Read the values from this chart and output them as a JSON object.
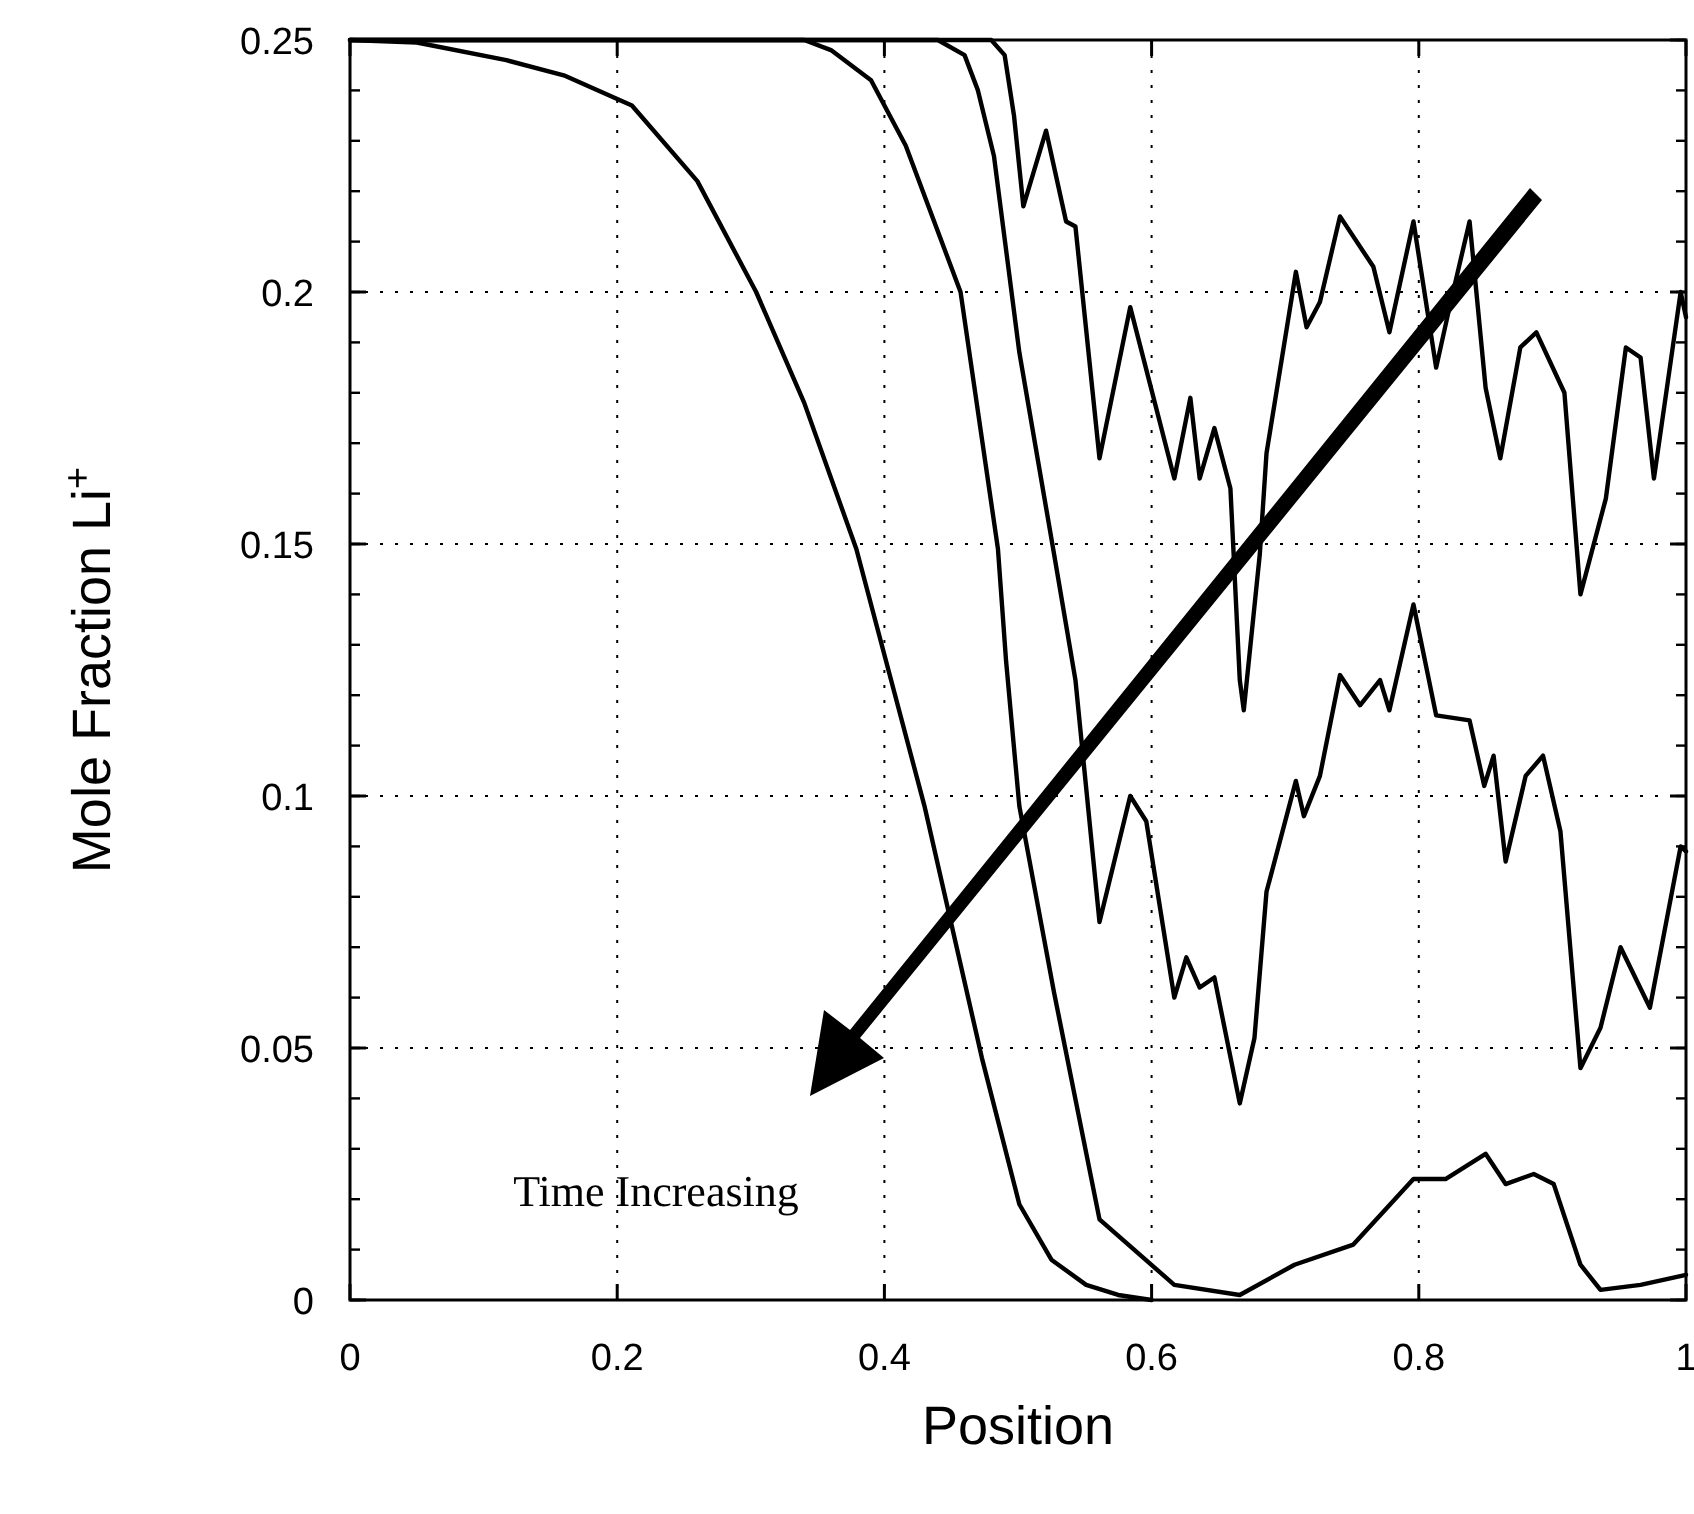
{
  "chart_data": {
    "type": "line",
    "xlabel": "Position",
    "ylabel": "Mole Fraction Li$^{+}$",
    "xlim": [
      0,
      1
    ],
    "ylim": [
      0,
      0.25
    ],
    "xticks": [
      0,
      0.2,
      0.4,
      0.6,
      0.8,
      1
    ],
    "yticks": [
      0,
      0.05,
      0.1,
      0.15,
      0.2,
      0.25
    ],
    "grid": true,
    "marker": "none",
    "line_style": "solid",
    "annotations": [
      "Time Increasing"
    ],
    "series": [
      {
        "color": "#000000",
        "x": [
          0,
          0.05,
          0.117,
          0.16,
          0.211,
          0.26,
          0.304,
          0.34,
          0.379,
          0.43,
          0.473,
          0.501,
          0.525,
          0.551,
          0.575,
          0.6
        ],
        "values": [
          0.25,
          0.2495,
          0.246,
          0.243,
          0.237,
          0.222,
          0.2,
          0.178,
          0.149,
          0.098,
          0.048,
          0.019,
          0.008,
          0.003,
          0.001,
          0
        ]
      },
      {
        "color": "#000000",
        "x": [
          0,
          0.34,
          0.36,
          0.39,
          0.416,
          0.457,
          0.485,
          0.491,
          0.501,
          0.527,
          0.561,
          0.617,
          0.666,
          0.707,
          0.751,
          0.796,
          0.82,
          0.85,
          0.865,
          0.886,
          0.901,
          0.921,
          0.936,
          0.966,
          1
        ],
        "values": [
          0.25,
          0.25,
          0.248,
          0.242,
          0.229,
          0.2,
          0.149,
          0.127,
          0.098,
          0.061,
          0.016,
          0.003,
          0.001,
          0.007,
          0.011,
          0.024,
          0.024,
          0.029,
          0.023,
          0.025,
          0.023,
          0.007,
          0.002,
          0.003,
          0.005
        ]
      },
      {
        "color": "#000000",
        "x": [
          0,
          0.44,
          0.46,
          0.47,
          0.482,
          0.501,
          0.527,
          0.543,
          0.561,
          0.584,
          0.596,
          0.617,
          0.626,
          0.636,
          0.647,
          0.666,
          0.677,
          0.686,
          0.708,
          0.714,
          0.726,
          0.741,
          0.756,
          0.771,
          0.778,
          0.796,
          0.813,
          0.838,
          0.849,
          0.856,
          0.865,
          0.88,
          0.893,
          0.906,
          0.921,
          0.936,
          0.951,
          0.973,
          0.996,
          1
        ],
        "values": [
          0.25,
          0.25,
          0.247,
          0.24,
          0.227,
          0.188,
          0.148,
          0.123,
          0.075,
          0.1,
          0.095,
          0.06,
          0.068,
          0.062,
          0.064,
          0.039,
          0.052,
          0.081,
          0.103,
          0.096,
          0.104,
          0.124,
          0.118,
          0.123,
          0.117,
          0.138,
          0.116,
          0.115,
          0.102,
          0.108,
          0.087,
          0.104,
          0.108,
          0.093,
          0.046,
          0.054,
          0.07,
          0.058,
          0.09,
          0.089
        ]
      },
      {
        "color": "#000000",
        "x": [
          0,
          0.48,
          0.49,
          0.497,
          0.504,
          0.521,
          0.536,
          0.543,
          0.561,
          0.584,
          0.617,
          0.629,
          0.636,
          0.647,
          0.659,
          0.666,
          0.669,
          0.681,
          0.686,
          0.708,
          0.716,
          0.726,
          0.741,
          0.766,
          0.778,
          0.796,
          0.813,
          0.823,
          0.838,
          0.85,
          0.861,
          0.876,
          0.888,
          0.909,
          0.921,
          0.931,
          0.94,
          0.955,
          0.966,
          0.976,
          0.996,
          1
        ],
        "values": [
          0.25,
          0.25,
          0.247,
          0.235,
          0.217,
          0.232,
          0.214,
          0.213,
          0.167,
          0.197,
          0.163,
          0.179,
          0.163,
          0.173,
          0.161,
          0.123,
          0.117,
          0.148,
          0.168,
          0.204,
          0.193,
          0.198,
          0.215,
          0.205,
          0.192,
          0.214,
          0.185,
          0.197,
          0.214,
          0.181,
          0.167,
          0.189,
          0.192,
          0.18,
          0.14,
          0.15,
          0.159,
          0.189,
          0.187,
          0.163,
          0.2,
          0.195
        ]
      }
    ]
  }
}
